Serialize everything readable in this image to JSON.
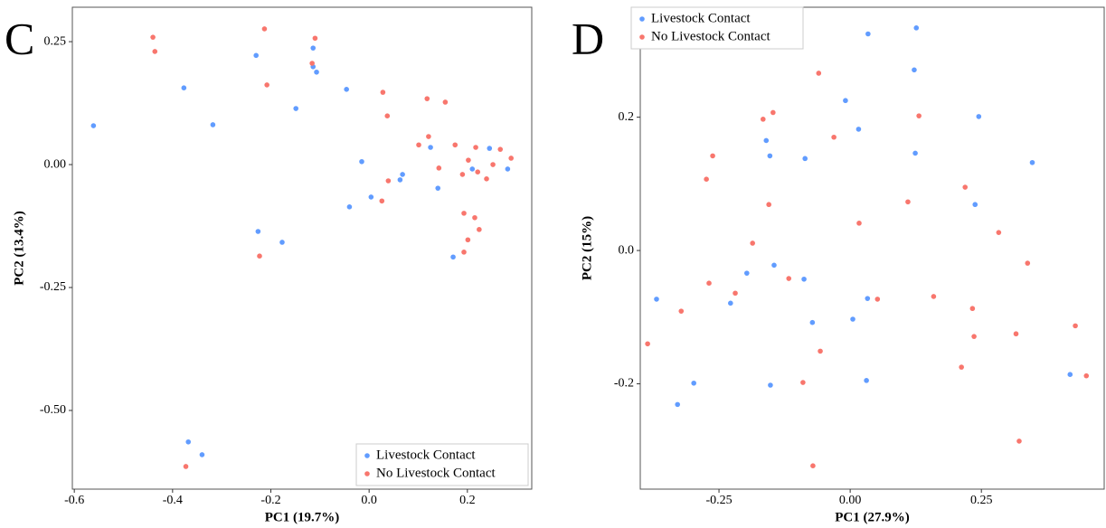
{
  "chart_data": [
    {
      "type": "scatter",
      "panel_label": "C",
      "xlabel": "PC1 (19.7%)",
      "ylabel": "PC2 (13.4%)",
      "xlim": [
        -0.604,
        0.331
      ],
      "ylim": [
        -0.66,
        0.32
      ],
      "xticks": [
        -0.6,
        -0.4,
        -0.2,
        {
          "value": 0,
          "label": "0.0"
        },
        0.2
      ],
      "yticks": [
        {
          "value": -0.5,
          "label": "-0.50"
        },
        -0.25,
        {
          "value": 0,
          "label": "0.00"
        },
        0.25
      ],
      "legend": "lower right",
      "series": [
        {
          "name": "Livestock Contact",
          "color": "#619cff",
          "x": [
            -0.561,
            -0.377,
            -0.318,
            -0.23,
            -0.114,
            -0.114,
            -0.107,
            -0.149,
            -0.046,
            -0.015,
            0.004,
            -0.04,
            0.068,
            0.063,
            0.125,
            0.14,
            0.171,
            0.21,
            0.245,
            0.282,
            -0.226,
            -0.177,
            -0.368,
            -0.34
          ],
          "values": [
            0.079,
            0.156,
            0.081,
            0.222,
            0.237,
            0.199,
            0.188,
            0.114,
            0.153,
            0.006,
            -0.066,
            -0.086,
            -0.02,
            -0.031,
            0.035,
            -0.048,
            -0.188,
            -0.009,
            0.033,
            -0.009,
            -0.136,
            -0.158,
            -0.564,
            -0.59
          ]
        },
        {
          "name": "No Livestock Contact",
          "color": "#f8766d",
          "x": [
            -0.44,
            -0.436,
            -0.213,
            -0.208,
            -0.11,
            -0.116,
            0.028,
            0.037,
            0.118,
            0.155,
            0.121,
            0.101,
            0.175,
            0.217,
            0.267,
            0.289,
            0.252,
            0.142,
            0.19,
            0.221,
            0.202,
            0.039,
            0.026,
            0.239,
            0.193,
            0.215,
            0.224,
            0.201,
            0.193,
            -0.223,
            -0.373
          ],
          "values": [
            0.259,
            0.23,
            0.276,
            0.162,
            0.257,
            0.206,
            0.147,
            0.099,
            0.134,
            0.127,
            0.057,
            0.04,
            0.04,
            0.035,
            0.031,
            0.013,
            0.0,
            -0.007,
            -0.02,
            -0.015,
            0.009,
            -0.033,
            -0.074,
            -0.029,
            -0.099,
            -0.108,
            -0.132,
            -0.153,
            -0.178,
            -0.186,
            -0.614
          ]
        }
      ]
    },
    {
      "type": "scatter",
      "panel_label": "D",
      "xlabel": "PC1 (27.9%)",
      "ylabel": "PC2 (15%)",
      "xlim": [
        -0.4,
        0.484
      ],
      "ylim": [
        -0.358,
        0.365
      ],
      "xticks": [
        -0.25,
        {
          "value": 0,
          "label": "0.00"
        },
        0.25
      ],
      "yticks": [
        -0.2,
        {
          "value": 0,
          "label": "0.0"
        },
        0.2
      ],
      "legend": "upper left",
      "series": [
        {
          "name": "Livestock Contact",
          "color": "#619cff",
          "x": [
            0.034,
            0.126,
            0.122,
            0.245,
            -0.009,
            0.016,
            -0.16,
            -0.153,
            -0.086,
            0.124,
            0.347,
            0.238,
            -0.145,
            -0.197,
            -0.088,
            -0.369,
            -0.228,
            0.033,
            -0.072,
            0.005,
            -0.298,
            -0.329,
            -0.152,
            0.031,
            0.419
          ],
          "values": [
            0.325,
            0.334,
            0.271,
            0.201,
            0.225,
            0.182,
            0.165,
            0.142,
            0.138,
            0.146,
            0.132,
            0.069,
            -0.022,
            -0.034,
            -0.043,
            -0.073,
            -0.079,
            -0.072,
            -0.108,
            -0.103,
            -0.199,
            -0.231,
            -0.202,
            -0.195,
            -0.186
          ]
        },
        {
          "name": "No Livestock Contact",
          "color": "#f8766d",
          "x": [
            -0.06,
            -0.147,
            -0.166,
            0.131,
            -0.031,
            -0.262,
            -0.274,
            0.219,
            -0.155,
            0.11,
            0.017,
            0.283,
            -0.186,
            0.338,
            -0.269,
            -0.219,
            -0.117,
            0.052,
            0.159,
            0.233,
            -0.322,
            0.236,
            0.316,
            0.429,
            -0.057,
            -0.386,
            0.212,
            0.45,
            -0.09,
            0.322,
            -0.071
          ],
          "values": [
            0.266,
            0.207,
            0.197,
            0.202,
            0.17,
            0.142,
            0.107,
            0.095,
            0.069,
            0.073,
            0.041,
            0.027,
            0.011,
            -0.019,
            -0.049,
            -0.064,
            -0.042,
            -0.073,
            -0.069,
            -0.087,
            -0.091,
            -0.129,
            -0.125,
            -0.113,
            -0.151,
            -0.14,
            -0.175,
            -0.188,
            -0.198,
            -0.286,
            -0.323
          ]
        }
      ]
    }
  ]
}
